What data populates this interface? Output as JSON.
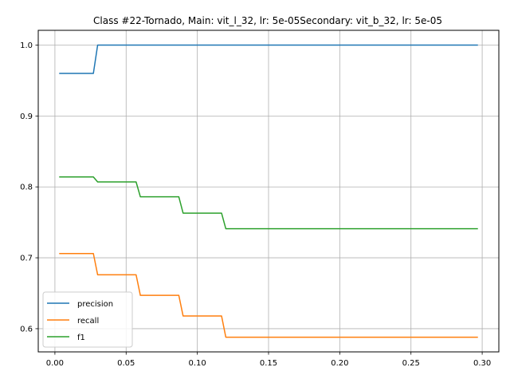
{
  "chart_data": {
    "type": "line",
    "title": "Class #22-Tornado, Main: vit_l_32, lr: 5e-05Secondary: vit_b_32, lr: 5e-05",
    "xlabel": "",
    "ylabel": "",
    "xlim": [
      -0.0117,
      0.3117
    ],
    "ylim": [
      0.5673,
      1.0208
    ],
    "xticks": [
      0.0,
      0.05,
      0.1,
      0.15,
      0.2,
      0.25,
      0.3
    ],
    "xtick_labels": [
      "0.00",
      "0.05",
      "0.10",
      "0.15",
      "0.20",
      "0.25",
      "0.30"
    ],
    "yticks": [
      0.6,
      0.7,
      0.8,
      0.9,
      1.0
    ],
    "ytick_labels": [
      "0.6",
      "0.7",
      "0.8",
      "0.9",
      "1.0"
    ],
    "grid": true,
    "legend_position": "lower-left",
    "series": [
      {
        "name": "precision",
        "color": "#1f77b4",
        "points": [
          [
            0.003,
            0.96
          ],
          [
            0.027,
            0.96
          ],
          [
            0.03,
            1.0
          ],
          [
            0.297,
            1.0
          ]
        ]
      },
      {
        "name": "recall",
        "color": "#ff7f0e",
        "points": [
          [
            0.003,
            0.706
          ],
          [
            0.027,
            0.706
          ],
          [
            0.03,
            0.676
          ],
          [
            0.057,
            0.676
          ],
          [
            0.06,
            0.647
          ],
          [
            0.087,
            0.647
          ],
          [
            0.09,
            0.618
          ],
          [
            0.117,
            0.618
          ],
          [
            0.12,
            0.588
          ],
          [
            0.297,
            0.588
          ]
        ]
      },
      {
        "name": "f1",
        "color": "#2ca02c",
        "points": [
          [
            0.003,
            0.814
          ],
          [
            0.027,
            0.814
          ],
          [
            0.03,
            0.807
          ],
          [
            0.057,
            0.807
          ],
          [
            0.06,
            0.786
          ],
          [
            0.087,
            0.786
          ],
          [
            0.09,
            0.763
          ],
          [
            0.117,
            0.763
          ],
          [
            0.12,
            0.741
          ],
          [
            0.297,
            0.741
          ]
        ]
      }
    ]
  }
}
